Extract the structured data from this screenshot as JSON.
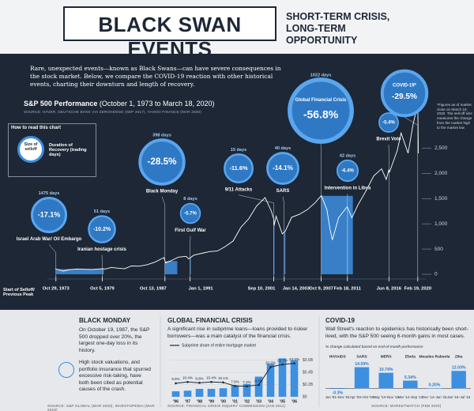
{
  "header": {
    "title": "BLACK SWAN EVENTS",
    "subtitle": "SHORT-TERM CRISIS, LONG-TERM OPPORTUNITY"
  },
  "intro": "Rare, unexpected events—known as Black Swans—can have severe consequences in the stock market. Below, we compare the COVID-19 reaction with other historical events, charting their downturn and length of recovery.",
  "black_monday": {
    "title": "BLACK MONDAY",
    "text1": "On October 19, 1987, the S&P 500 dropped over 20%, the largest one-day loss in its history.",
    "text2": "High stock valuations, and portfolio insurance that spurred excessive risk-taking, have both been cited as potential causes of the crash.",
    "source": "SOURCE: S&P GLOBAL (MAR 2020), INVESTOPEDIA (MAR 2019)"
  },
  "chart_data": [
    {
      "type": "line",
      "title": "S&P 500 Performance",
      "subtitle": "(October 1, 1973 to March 18, 2020)",
      "source": "SOURCE: HAVER, DEUTSCHE BANK VIA ZEROHEDGE (SEP 2017), YAHOO FINANCE (MAR 2020)",
      "how_to_read": {
        "title": "How to read this chart",
        "size_label": "Size of selloff",
        "duration_label": "Duration of Recovery (trading days)"
      },
      "start_label": "Start of Selloff/ Previous Peak",
      "footnote": "*Figures as of market close on March 18, 2020. The sell-off size measures the change from the market high to the market low",
      "color": "#ffffff",
      "band_color": "#3d8fe0",
      "x": [
        1973.75,
        1974.75,
        1975.5,
        1976.5,
        1977.5,
        1978.5,
        1979.7,
        1980.2,
        1980.9,
        1982.6,
        1983.5,
        1984.5,
        1985.5,
        1986.5,
        1987.65,
        1987.85,
        1988.5,
        1989.5,
        1990.5,
        1990.8,
        1991.5,
        1992.5,
        1993.5,
        1994.5,
        1995.5,
        1996.5,
        1997.5,
        1998.5,
        1999.5,
        2000.6,
        2001.4,
        2001.7,
        2001.75,
        2002.0,
        2002.8,
        2003.2,
        2004.0,
        2005.0,
        2006.0,
        2007.0,
        2007.8,
        2008.5,
        2008.9,
        2009.2,
        2010.0,
        2011.1,
        2011.7,
        2012.5,
        2013.5,
        2014.5,
        2015.5,
        2016.1,
        2016.45,
        2016.5,
        2017.5,
        2018.0,
        2018.9,
        2019.5,
        2020.13,
        2020.21
      ],
      "values": [
        108,
        63,
        90,
        105,
        98,
        95,
        110,
        105,
        135,
        108,
        165,
        160,
        190,
        240,
        330,
        225,
        265,
        340,
        355,
        305,
        380,
        415,
        450,
        460,
        550,
        660,
        930,
        1100,
        1350,
        1520,
        1250,
        1090,
        965,
        1150,
        800,
        860,
        1130,
        1190,
        1280,
        1420,
        1560,
        1280,
        900,
        680,
        1120,
        1340,
        1120,
        1380,
        1650,
        1950,
        2090,
        1880,
        2080,
        2020,
        2450,
        2800,
        2400,
        2950,
        3386,
        2398
      ],
      "xlim": [
        1973.75,
        2020.25
      ],
      "ylim": [
        0,
        3400
      ],
      "yticks": [
        0,
        500,
        {
          "value": 1000,
          "label": "1,000"
        },
        {
          "value": 1500,
          "label": "1,500"
        },
        {
          "value": 2000,
          "label": "2,000"
        },
        {
          "value": 2500,
          "label": "2,500"
        }
      ],
      "xticks": [
        {
          "value": 1973.83,
          "label": "Oct 29, 1973"
        },
        {
          "value": 1979.76,
          "label": "Oct 5, 1979"
        },
        {
          "value": 1987.78,
          "label": "Oct 13, 1987"
        },
        {
          "value": 1991.0,
          "label": "Jan 1, 1991"
        },
        {
          "value": 2001.69,
          "label": "Sep 10, 2001"
        },
        {
          "value": 2003.04,
          "label": "Jan 14, 2003"
        },
        {
          "value": 2007.77,
          "label": "Oct 9, 2007"
        },
        {
          "value": 2011.13,
          "label": "Feb 18, 2011"
        },
        {
          "value": 2016.44,
          "label": "Jun 8, 2016"
        },
        {
          "value": 2020.13,
          "label": "Feb 19, 2020"
        }
      ],
      "events": [
        {
          "name": "Israel Arab War/ Oil Embargo",
          "selloff": -17.1,
          "selloff_label": "-17.1%",
          "recovery_days": 1475,
          "recovery_label": "1475 days"
        },
        {
          "name": "Iranian hostage crisis",
          "selloff": -10.2,
          "selloff_label": "-10.2%",
          "recovery_days": 51,
          "recovery_label": "51 days"
        },
        {
          "name": "Black Monday",
          "selloff": -28.5,
          "selloff_label": "-28.5%",
          "recovery_days": 398,
          "recovery_label": "398 days"
        },
        {
          "name": "First Gulf War",
          "selloff": -5.7,
          "selloff_label": "-5.7%",
          "recovery_days": 8,
          "recovery_label": "8 days"
        },
        {
          "name": "9/11 Attacks",
          "selloff": -11.6,
          "selloff_label": "-11.6%",
          "recovery_days": 15,
          "recovery_label": "15 days"
        },
        {
          "name": "SARS",
          "selloff": -14.1,
          "selloff_label": "-14.1%",
          "recovery_days": 40,
          "recovery_label": "40 days"
        },
        {
          "name": "Global Financial Crisis",
          "selloff": -56.8,
          "selloff_label": "-56.8%",
          "recovery_days": 1022,
          "recovery_label": "1022 days"
        },
        {
          "name": "Intervention in Libya",
          "selloff": -6.4,
          "selloff_label": "-6.4%",
          "recovery_days": 42,
          "recovery_label": "42 days"
        },
        {
          "name": "Brexit Vote",
          "selloff": -5.4,
          "selloff_label": "-5.4%",
          "recovery_days": null,
          "recovery_label": null
        },
        {
          "name": "COVID-19*",
          "selloff": -29.5,
          "selloff_label": "-29.5%",
          "recovery_days": null,
          "recovery_label": null
        }
      ]
    },
    {
      "type": "bar",
      "title": "GLOBAL FINANCIAL CRISIS",
      "text": "A significant rise in subprime loans—loans provided to riskier borrowers—was a main catalyst of the financial crisis.",
      "source": "SOURCE: FINANCIAL CRISIS INQUIRY COMMISSION (JAN 2011)",
      "categories": [
        "'96",
        "'97",
        "'98",
        "'99",
        "'00",
        "'01",
        "'02",
        "'03",
        "'04",
        "'05",
        "'06"
      ],
      "values": [
        0.09,
        0.1,
        0.13,
        0.13,
        0.14,
        0.19,
        0.21,
        0.33,
        0.54,
        0.63,
        0.6
      ],
      "color": "#3d8fe0",
      "ylim": [
        0,
        0.7
      ],
      "yticks": [
        {
          "value": 0,
          "label": "$0"
        },
        {
          "value": 0.2,
          "label": "$0.2B"
        },
        {
          "value": 0.4,
          "label": "$0.4B"
        },
        {
          "value": 0.6,
          "label": "$0.6B"
        }
      ],
      "line": {
        "name": "Subprime share of entire mortgage market",
        "axis": "y2",
        "color": "#1d2735",
        "values": [
          9.5,
          10.4,
          9.8,
          10.4,
          10.1,
          7.6,
          7.4,
          8.3,
          20.9,
          22.7,
          23.5
        ],
        "value_labels": [
          "9.5%",
          "10.4%",
          "9.8%",
          "10.4%",
          "10.1%",
          "7.6%",
          "7.4%",
          "8.3%",
          "20.9%",
          "22.7%",
          "23.5%"
        ]
      },
      "y2lim": [
        0,
        30
      ]
    },
    {
      "type": "bar",
      "title": "COVID-19",
      "text": "Wall Street's reaction to epidemics has historically been short-lived, with the S&P 500 seeing 6-month gains in most cases.",
      "note": "% change calculated based on end-of-month performance",
      "source": "SOURCE: MARKETWATCH (FEB 2020)",
      "categories": [
        "HIV/AIDS",
        "SARS",
        "MERS",
        "Ebola",
        "Measles Rubeola",
        "Zika"
      ],
      "periods": [
        "Jun '81–Dec '81",
        "Apr '03–Oct '03",
        "May '13–Nov '13",
        "Mar '14–Sep '14",
        "Dec '14–Jun '15",
        "Jan '16–Jul '16"
      ],
      "values": [
        -0.3,
        14.59,
        10.74,
        5.34,
        0.2,
        12.03
      ],
      "value_labels": [
        "-0.3%",
        "14.59%",
        "10.74%",
        "5.34%",
        "0.20%",
        "12.03%"
      ],
      "color": "#3d8fe0",
      "ylim": [
        -2,
        16
      ]
    }
  ]
}
